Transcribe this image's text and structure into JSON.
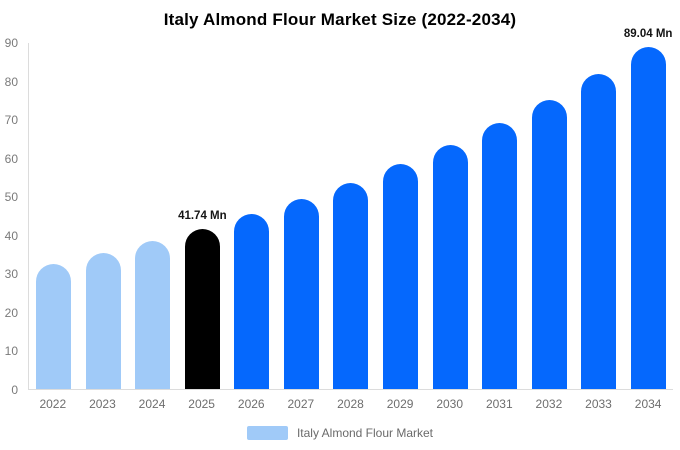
{
  "title": "Italy Almond Flour Market Size (2022-2034)",
  "colors": {
    "bar_blue": "#0568fd",
    "bar_light_blue": "#a0caf8",
    "bar_black": "#000000",
    "axis_line": "#dcdcdc",
    "y_tick_text": "#7a7a7a",
    "x_tick_text": "#6e6e6e",
    "annotation_text": "#141414",
    "title_text": "#000000",
    "background": "#ffffff"
  },
  "legend": {
    "label": "Italy Almond Flour Market",
    "swatch_color": "#a0caf8"
  },
  "chart_data": {
    "type": "bar",
    "title": "Italy Almond Flour Market Size (2022-2034)",
    "xlabel": "",
    "ylabel": "",
    "ylim": [
      0,
      90
    ],
    "yticks": [
      0,
      10,
      20,
      30,
      40,
      50,
      60,
      70,
      80,
      90
    ],
    "grid": false,
    "legend_position": "bottom",
    "categories": [
      "2022",
      "2023",
      "2024",
      "2025",
      "2026",
      "2027",
      "2028",
      "2029",
      "2030",
      "2031",
      "2032",
      "2033",
      "2034"
    ],
    "values": [
      32.4,
      35.3,
      38.4,
      41.74,
      45.4,
      49.4,
      53.7,
      58.5,
      63.6,
      69.2,
      75.2,
      81.9,
      89.04
    ],
    "bar_colors": [
      "#a0caf8",
      "#a0caf8",
      "#a0caf8",
      "#000000",
      "#0568fd",
      "#0568fd",
      "#0568fd",
      "#0568fd",
      "#0568fd",
      "#0568fd",
      "#0568fd",
      "#0568fd",
      "#0568fd"
    ],
    "annotations": [
      {
        "category": "2025",
        "label": "41.74 Mn"
      },
      {
        "category": "2034",
        "label": "89.04 Mn"
      }
    ]
  }
}
